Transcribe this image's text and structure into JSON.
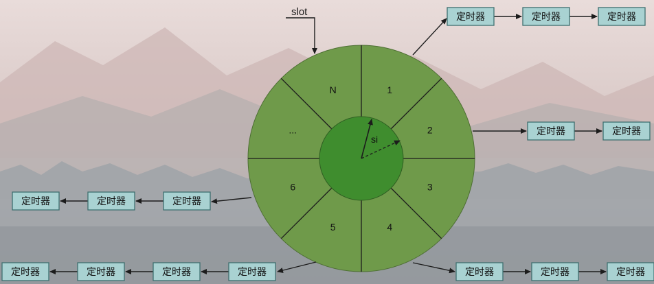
{
  "wheel": {
    "slot_label": "slot",
    "pointer_label": "si",
    "slots": [
      "1",
      "2",
      "3",
      "4",
      "5",
      "6",
      "...",
      "N"
    ]
  },
  "timer_label": "定时器",
  "chains": {
    "slot_1": [
      "定时器",
      "定时器",
      "定时器"
    ],
    "slot_2": [
      "定时器",
      "定时器"
    ],
    "slot_4": [
      "定时器",
      "定时器",
      "定时器"
    ],
    "slot_6": [
      "定时器",
      "定时器",
      "定时器"
    ],
    "slot_5": [
      "定时器",
      "定时器",
      "定时器",
      "定时器"
    ]
  },
  "colors": {
    "outer_ring": "#6f9a4a",
    "inner_hub": "#3f8d2e",
    "timer_box_fill": "#a9d2d2",
    "timer_box_stroke": "#3e6f6f",
    "line": "#1c1c1c"
  }
}
